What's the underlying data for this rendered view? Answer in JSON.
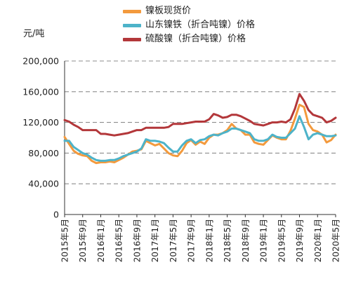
{
  "chart_data": {
    "type": "line",
    "ylabel": "元/吨",
    "ylim": [
      0,
      200000
    ],
    "yticks": [
      0,
      40000,
      80000,
      120000,
      160000,
      200000
    ],
    "ytick_labels": [
      "0",
      "40,000",
      "80,000",
      "120,000",
      "160,000",
      "200,000"
    ],
    "xlim": [
      "2015-05",
      "2020-05"
    ],
    "xtick_labels": [
      "2015年5月",
      "2015年9月",
      "2016年1月",
      "2016年5月",
      "2016年9月",
      "2017年1月",
      "2017年5月",
      "2017年9月",
      "2018年1月",
      "2018年5月",
      "2018年9月",
      "2019年1月",
      "2019年5月",
      "2019年9月",
      "2020年1月",
      "2020年5月"
    ],
    "grid": "horizontal dashed",
    "legend_position": "top",
    "series": [
      {
        "name": "镍板现货价",
        "color": "#f39a3d",
        "points": [
          [
            "2015-05",
            101000
          ],
          [
            "2015-06",
            92000
          ],
          [
            "2015-07",
            83000
          ],
          [
            "2015-08",
            79000
          ],
          [
            "2015-09",
            77000
          ],
          [
            "2015-10",
            76000
          ],
          [
            "2015-11",
            70000
          ],
          [
            "2015-12",
            67000
          ],
          [
            "2016-01",
            68000
          ],
          [
            "2016-02",
            68000
          ],
          [
            "2016-03",
            69000
          ],
          [
            "2016-04",
            68000
          ],
          [
            "2016-05",
            71000
          ],
          [
            "2016-06",
            74000
          ],
          [
            "2016-07",
            78000
          ],
          [
            "2016-08",
            82000
          ],
          [
            "2016-09",
            83000
          ],
          [
            "2016-10",
            85000
          ],
          [
            "2016-11",
            96000
          ],
          [
            "2016-12",
            93000
          ],
          [
            "2017-01",
            90000
          ],
          [
            "2017-02",
            92000
          ],
          [
            "2017-03",
            86000
          ],
          [
            "2017-04",
            80000
          ],
          [
            "2017-05",
            77000
          ],
          [
            "2017-06",
            76000
          ],
          [
            "2017-07",
            83000
          ],
          [
            "2017-08",
            93000
          ],
          [
            "2017-09",
            97000
          ],
          [
            "2017-10",
            91000
          ],
          [
            "2017-11",
            95000
          ],
          [
            "2017-12",
            92000
          ],
          [
            "2018-01",
            100000
          ],
          [
            "2018-02",
            104000
          ],
          [
            "2018-03",
            104000
          ],
          [
            "2018-04",
            106000
          ],
          [
            "2018-05",
            110000
          ],
          [
            "2018-06",
            118000
          ],
          [
            "2018-07",
            112000
          ],
          [
            "2018-08",
            110000
          ],
          [
            "2018-09",
            104000
          ],
          [
            "2018-10",
            104000
          ],
          [
            "2018-11",
            94000
          ],
          [
            "2018-12",
            92000
          ],
          [
            "2019-01",
            91000
          ],
          [
            "2019-02",
            97000
          ],
          [
            "2019-03",
            103000
          ],
          [
            "2019-04",
            100000
          ],
          [
            "2019-05",
            98000
          ],
          [
            "2019-06",
            98000
          ],
          [
            "2019-07",
            109000
          ],
          [
            "2019-08",
            125000
          ],
          [
            "2019-09",
            143000
          ],
          [
            "2019-10",
            140000
          ],
          [
            "2019-11",
            118000
          ],
          [
            "2019-12",
            110000
          ],
          [
            "2020-01",
            108000
          ],
          [
            "2020-02",
            104000
          ],
          [
            "2020-03",
            94000
          ],
          [
            "2020-04",
            97000
          ],
          [
            "2020-05",
            104000
          ]
        ]
      },
      {
        "name": "山东镍铁（折合吨镍）价格",
        "color": "#4db3c9",
        "points": [
          [
            "2015-05",
            96000
          ],
          [
            "2015-06",
            96000
          ],
          [
            "2015-07",
            88000
          ],
          [
            "2015-08",
            84000
          ],
          [
            "2015-09",
            80000
          ],
          [
            "2015-10",
            78000
          ],
          [
            "2015-11",
            74000
          ],
          [
            "2015-12",
            71000
          ],
          [
            "2016-01",
            70000
          ],
          [
            "2016-02",
            70000
          ],
          [
            "2016-03",
            71000
          ],
          [
            "2016-04",
            71000
          ],
          [
            "2016-05",
            73000
          ],
          [
            "2016-06",
            76000
          ],
          [
            "2016-07",
            78000
          ],
          [
            "2016-08",
            80000
          ],
          [
            "2016-09",
            82000
          ],
          [
            "2016-10",
            86000
          ],
          [
            "2016-11",
            98000
          ],
          [
            "2016-12",
            96000
          ],
          [
            "2017-01",
            96000
          ],
          [
            "2017-02",
            95000
          ],
          [
            "2017-03",
            93000
          ],
          [
            "2017-04",
            87000
          ],
          [
            "2017-05",
            82000
          ],
          [
            "2017-06",
            82000
          ],
          [
            "2017-07",
            90000
          ],
          [
            "2017-08",
            96000
          ],
          [
            "2017-09",
            98000
          ],
          [
            "2017-10",
            93000
          ],
          [
            "2017-11",
            97000
          ],
          [
            "2017-12",
            98000
          ],
          [
            "2018-01",
            102000
          ],
          [
            "2018-02",
            104000
          ],
          [
            "2018-03",
            103000
          ],
          [
            "2018-04",
            106000
          ],
          [
            "2018-05",
            108000
          ],
          [
            "2018-06",
            112000
          ],
          [
            "2018-07",
            112000
          ],
          [
            "2018-08",
            110000
          ],
          [
            "2018-09",
            108000
          ],
          [
            "2018-10",
            106000
          ],
          [
            "2018-11",
            98000
          ],
          [
            "2018-12",
            96000
          ],
          [
            "2019-01",
            96000
          ],
          [
            "2019-02",
            98000
          ],
          [
            "2019-03",
            104000
          ],
          [
            "2019-04",
            101000
          ],
          [
            "2019-05",
            100000
          ],
          [
            "2019-06",
            100000
          ],
          [
            "2019-07",
            106000
          ],
          [
            "2019-08",
            112000
          ],
          [
            "2019-09",
            128000
          ],
          [
            "2019-10",
            114000
          ],
          [
            "2019-11",
            98000
          ],
          [
            "2019-12",
            104000
          ],
          [
            "2020-01",
            106000
          ],
          [
            "2020-02",
            104000
          ],
          [
            "2020-03",
            102000
          ],
          [
            "2020-04",
            102000
          ],
          [
            "2020-05",
            103000
          ]
        ]
      },
      {
        "name": "硫酸镍（折合吨镍）价格",
        "color": "#b3373a",
        "points": [
          [
            "2015-05",
            123000
          ],
          [
            "2015-06",
            121000
          ],
          [
            "2015-07",
            117000
          ],
          [
            "2015-08",
            114000
          ],
          [
            "2015-09",
            110000
          ],
          [
            "2015-10",
            110000
          ],
          [
            "2015-11",
            110000
          ],
          [
            "2015-12",
            110000
          ],
          [
            "2016-01",
            105000
          ],
          [
            "2016-02",
            105000
          ],
          [
            "2016-03",
            104000
          ],
          [
            "2016-04",
            103000
          ],
          [
            "2016-05",
            104000
          ],
          [
            "2016-06",
            105000
          ],
          [
            "2016-07",
            106000
          ],
          [
            "2016-08",
            108000
          ],
          [
            "2016-09",
            110000
          ],
          [
            "2016-10",
            110000
          ],
          [
            "2016-11",
            113000
          ],
          [
            "2016-12",
            113000
          ],
          [
            "2017-01",
            113000
          ],
          [
            "2017-02",
            113000
          ],
          [
            "2017-03",
            113000
          ],
          [
            "2017-04",
            114000
          ],
          [
            "2017-05",
            118000
          ],
          [
            "2017-06",
            118000
          ],
          [
            "2017-07",
            118000
          ],
          [
            "2017-08",
            119000
          ],
          [
            "2017-09",
            120000
          ],
          [
            "2017-10",
            121000
          ],
          [
            "2017-11",
            121000
          ],
          [
            "2017-12",
            121000
          ],
          [
            "2018-01",
            124000
          ],
          [
            "2018-02",
            131000
          ],
          [
            "2018-03",
            129000
          ],
          [
            "2018-04",
            126000
          ],
          [
            "2018-05",
            127000
          ],
          [
            "2018-06",
            130000
          ],
          [
            "2018-07",
            130000
          ],
          [
            "2018-08",
            128000
          ],
          [
            "2018-09",
            125000
          ],
          [
            "2018-10",
            122000
          ],
          [
            "2018-11",
            118000
          ],
          [
            "2018-12",
            117000
          ],
          [
            "2019-01",
            116000
          ],
          [
            "2019-02",
            118000
          ],
          [
            "2019-03",
            120000
          ],
          [
            "2019-04",
            120000
          ],
          [
            "2019-05",
            121000
          ],
          [
            "2019-06",
            120000
          ],
          [
            "2019-07",
            124000
          ],
          [
            "2019-08",
            138000
          ],
          [
            "2019-09",
            157000
          ],
          [
            "2019-10",
            148000
          ],
          [
            "2019-11",
            136000
          ],
          [
            "2019-12",
            130000
          ],
          [
            "2020-01",
            128000
          ],
          [
            "2020-02",
            126000
          ],
          [
            "2020-03",
            120000
          ],
          [
            "2020-04",
            122000
          ],
          [
            "2020-05",
            126000
          ]
        ]
      }
    ]
  }
}
